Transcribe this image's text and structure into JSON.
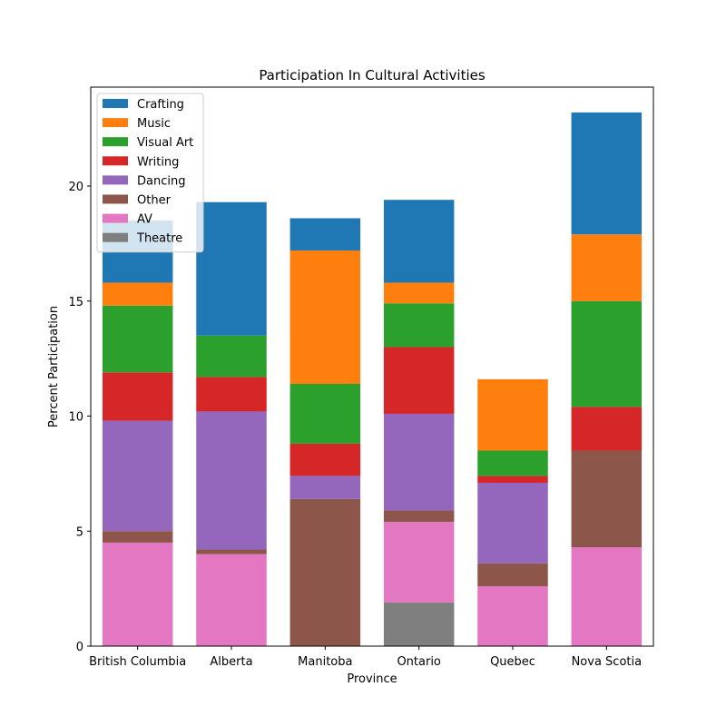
{
  "chart_data": {
    "type": "bar",
    "stacked": true,
    "title": "Participation In Cultural Activities",
    "xlabel": "Province",
    "ylabel": "Percent Participation",
    "ylim": [
      0,
      24.3
    ],
    "yticks": [
      0,
      5,
      10,
      15,
      20
    ],
    "grid": false,
    "legend_position": "top-left",
    "categories": [
      "British Columbia",
      "Alberta",
      "Manitoba",
      "Ontario",
      "Quebec",
      "Nova Scotia"
    ],
    "series": [
      {
        "name": "Theatre",
        "color": "#7f7f7f",
        "values": [
          0,
          0,
          0,
          1.9,
          0,
          0
        ]
      },
      {
        "name": "AV",
        "color": "#e377c2",
        "values": [
          4.5,
          4.0,
          0,
          3.5,
          2.6,
          4.3
        ]
      },
      {
        "name": "Other",
        "color": "#8c564b",
        "values": [
          0.5,
          0.2,
          6.4,
          0.5,
          1.0,
          4.2
        ]
      },
      {
        "name": "Dancing",
        "color": "#9467bd",
        "values": [
          4.8,
          6.0,
          1.0,
          4.2,
          3.5,
          0
        ]
      },
      {
        "name": "Writing",
        "color": "#d62728",
        "values": [
          2.1,
          1.5,
          1.4,
          2.9,
          0.3,
          1.9
        ]
      },
      {
        "name": "Visual Art",
        "color": "#2ca02c",
        "values": [
          2.9,
          1.8,
          2.6,
          1.9,
          1.1,
          4.6
        ]
      },
      {
        "name": "Music",
        "color": "#ff7f0e",
        "values": [
          1.0,
          0,
          5.8,
          0.9,
          3.1,
          2.9
        ]
      },
      {
        "name": "Crafting",
        "color": "#1f77b4",
        "values": [
          2.7,
          5.8,
          1.4,
          3.6,
          0,
          5.3
        ]
      }
    ],
    "legend_order": [
      "Crafting",
      "Music",
      "Visual Art",
      "Writing",
      "Dancing",
      "Other",
      "AV",
      "Theatre"
    ]
  }
}
